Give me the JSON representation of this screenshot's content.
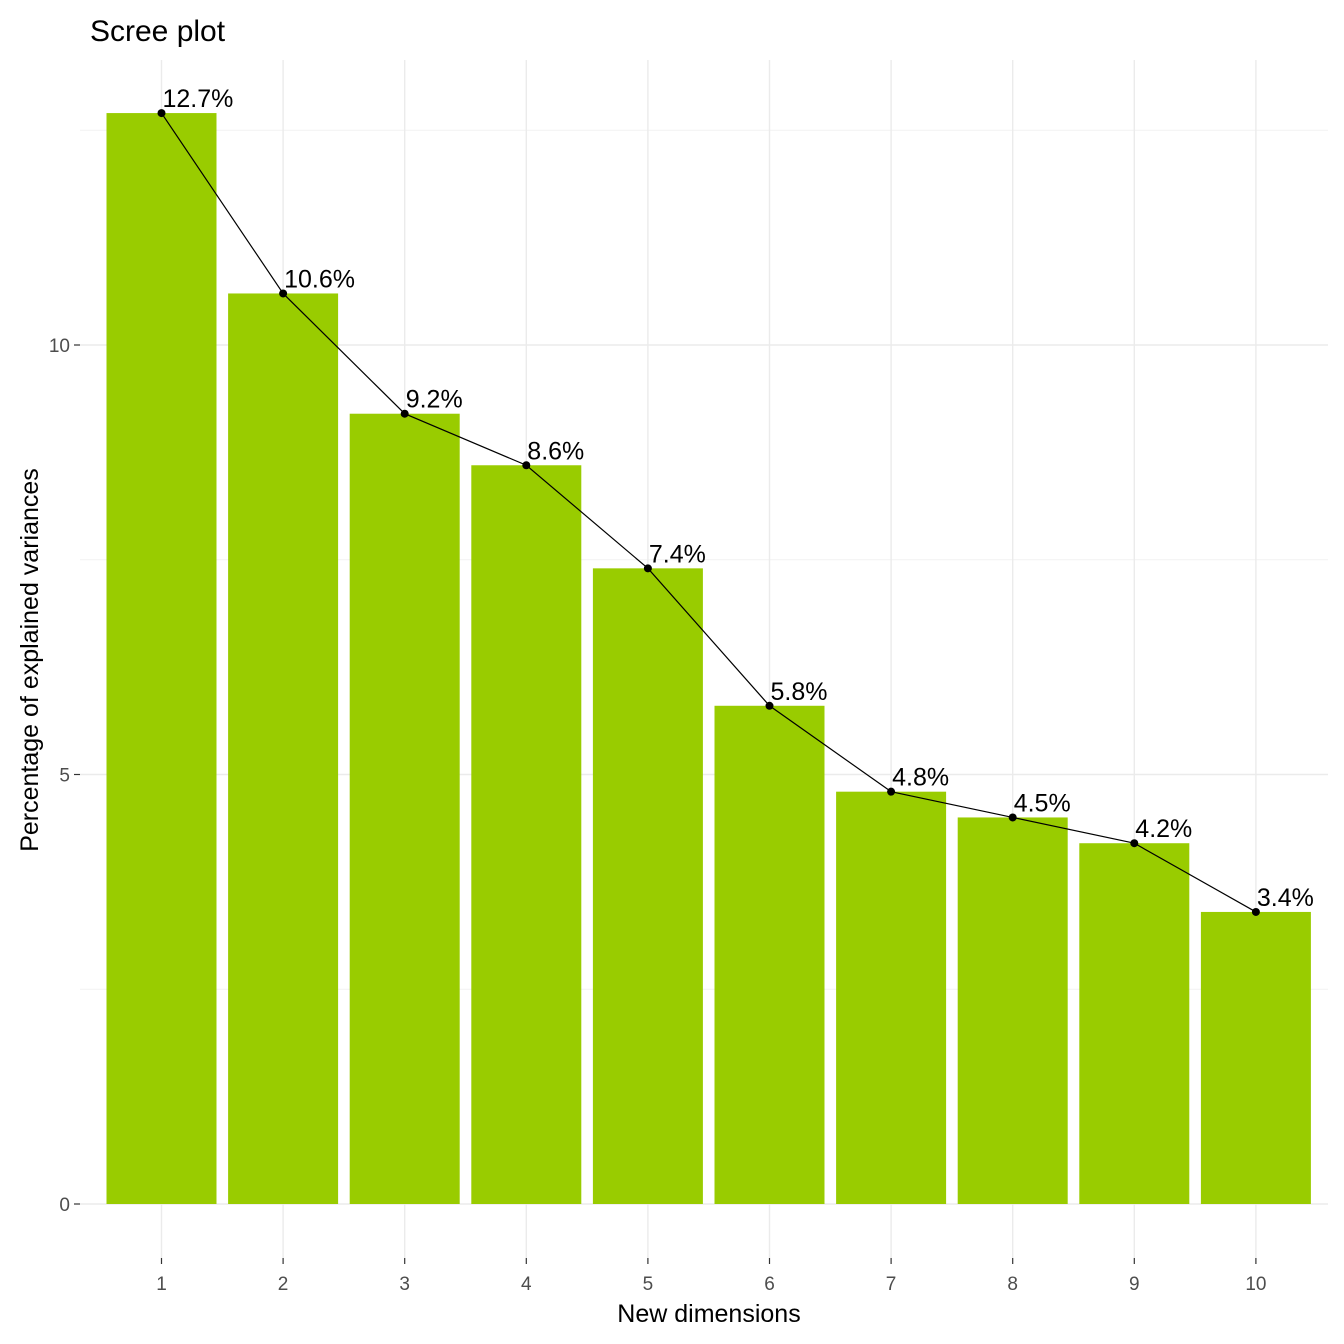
{
  "chart_data": {
    "type": "bar",
    "title": "Scree plot",
    "xlabel": "New dimensions",
    "ylabel": "Percentage of explained variances",
    "categories": [
      "1",
      "2",
      "3",
      "4",
      "5",
      "6",
      "7",
      "8",
      "9",
      "10"
    ],
    "values": [
      12.7,
      10.6,
      9.2,
      8.6,
      7.4,
      5.8,
      4.8,
      4.5,
      4.2,
      3.4
    ],
    "labels": [
      "12.7%",
      "10.6%",
      "9.2%",
      "8.6%",
      "7.4%",
      "5.8%",
      "4.8%",
      "4.5%",
      "4.2%",
      "3.4%"
    ],
    "y_ticks": [
      0,
      5,
      10
    ],
    "y_tick_labels": [
      "0",
      "5",
      "10"
    ],
    "ylim": [
      0,
      13.4
    ],
    "overlay": "line with points connecting bar tops",
    "grid": true,
    "colors": {
      "bar": "#99cc00",
      "line": "#000000"
    }
  }
}
